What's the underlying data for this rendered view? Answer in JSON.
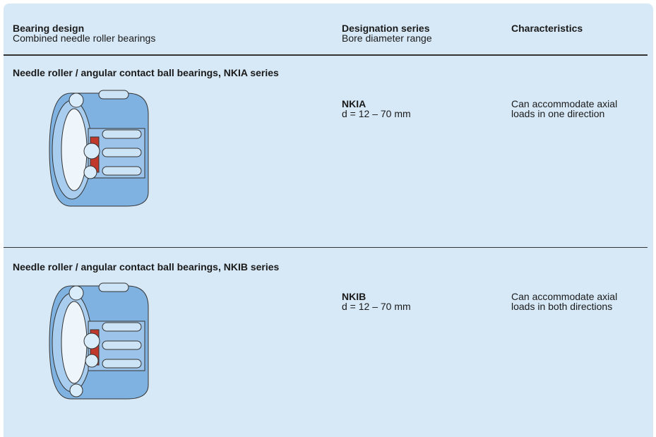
{
  "header": {
    "columns": [
      {
        "title": "Bearing design",
        "subtitle": "Combined needle roller bearings"
      },
      {
        "title": "Designation series",
        "subtitle": "Bore diameter range"
      },
      {
        "title": "Characteristics"
      }
    ]
  },
  "rows": [
    {
      "title": "Needle roller / angular contact ball bearings, NKIA series",
      "designation": "NKIA",
      "range": "d = 12 – 70 mm",
      "characteristics": [
        "Can accommodate axial",
        "loads in one direction"
      ]
    },
    {
      "title": "Needle roller / angular contact ball bearings, NKIB series",
      "designation": "NKIB",
      "range": "d = 12 – 70 mm",
      "characteristics": [
        "Can accommodate axial",
        "loads in both directions"
      ]
    }
  ]
}
